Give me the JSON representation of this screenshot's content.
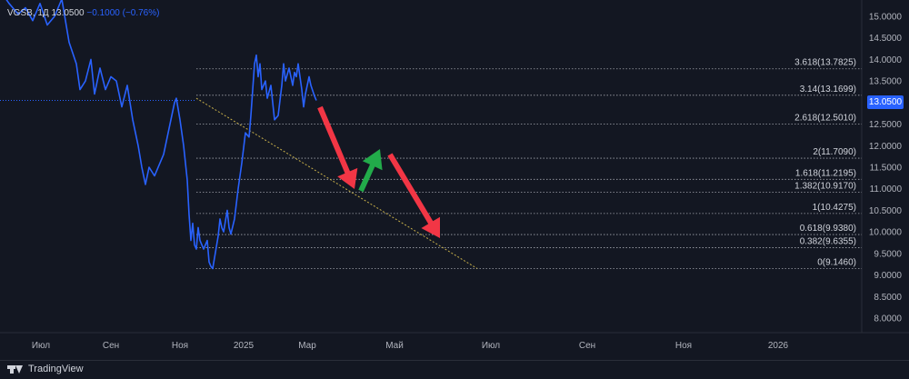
{
  "legend": {
    "symbol": "VGSB, 1Д",
    "values": "13.0500",
    "change": "−0.1000 (−0.76%)"
  },
  "current_price": "13.0500",
  "footer": {
    "brand": "TradingView"
  },
  "colors": {
    "background": "#131722",
    "price_line": "#2962ff",
    "fib_line": "#d1d4dc",
    "trend_line": "#c8b04a",
    "arrow_down": "#f23645",
    "arrow_up": "#22ab4a",
    "axis_text": "#b2b5be"
  },
  "chart_data": {
    "type": "line",
    "y_axis": {
      "ylim": [
        7.75,
        15.25
      ],
      "ticks": [
        "15.0000",
        "14.5000",
        "14.0000",
        "13.5000",
        "13.0000",
        "12.5000",
        "12.0000",
        "11.5000",
        "11.0000",
        "10.5000",
        "10.0000",
        "9.5000",
        "9.0000",
        "8.5000",
        "8.0000"
      ]
    },
    "x_axis": {
      "ticks": [
        "Июл",
        "Сен",
        "Ноя",
        "2025",
        "Мар",
        "Май",
        "Июл",
        "Сен",
        "Ноя",
        "2026"
      ]
    },
    "series": [
      {
        "values": [
          [
            0,
            15.6
          ],
          [
            5,
            15.3
          ],
          [
            10,
            15.05
          ],
          [
            14,
            15.2
          ],
          [
            18,
            14.9
          ],
          [
            22,
            15.3
          ],
          [
            26,
            14.8
          ],
          [
            30,
            15.0
          ],
          [
            34,
            15.4
          ],
          [
            38,
            14.4
          ],
          [
            42,
            13.9
          ],
          [
            44,
            13.3
          ],
          [
            47,
            13.5
          ],
          [
            50,
            14.0
          ],
          [
            52,
            13.2
          ],
          [
            55,
            13.8
          ],
          [
            58,
            13.3
          ],
          [
            61,
            13.6
          ],
          [
            64,
            13.5
          ],
          [
            67,
            12.9
          ],
          [
            70,
            13.4
          ],
          [
            73,
            12.6
          ],
          [
            76,
            12.0
          ],
          [
            78,
            11.5
          ],
          [
            80,
            11.1
          ],
          [
            82,
            11.5
          ],
          [
            85,
            11.3
          ],
          [
            88,
            11.6
          ],
          [
            90,
            11.8
          ],
          [
            92,
            12.2
          ],
          [
            94,
            12.6
          ],
          [
            96,
            13.0
          ],
          [
            97,
            13.1
          ],
          [
            99,
            12.6
          ],
          [
            101,
            12.0
          ],
          [
            103,
            11.2
          ],
          [
            104,
            10.4
          ],
          [
            105,
            9.8
          ],
          [
            106,
            10.2
          ],
          [
            107,
            9.7
          ],
          [
            108,
            9.6
          ],
          [
            109,
            10.1
          ],
          [
            110,
            9.8
          ],
          [
            112,
            9.6
          ],
          [
            114,
            9.8
          ],
          [
            115,
            9.3
          ],
          [
            116,
            9.2
          ],
          [
            117,
            9.15
          ],
          [
            118,
            9.4
          ],
          [
            120,
            9.9
          ],
          [
            121,
            10.3
          ],
          [
            122,
            10.1
          ],
          [
            123,
            10.0
          ],
          [
            125,
            10.5
          ],
          [
            126,
            10.1
          ],
          [
            127,
            9.95
          ],
          [
            129,
            10.3
          ],
          [
            131,
            11.0
          ],
          [
            133,
            11.6
          ],
          [
            135,
            12.3
          ],
          [
            137,
            12.2
          ],
          [
            138,
            12.7
          ],
          [
            139,
            13.3
          ],
          [
            140,
            13.9
          ],
          [
            141,
            14.1
          ],
          [
            142,
            13.6
          ],
          [
            143,
            13.9
          ],
          [
            144,
            13.3
          ],
          [
            146,
            13.5
          ],
          [
            147,
            13.1
          ],
          [
            149,
            13.4
          ],
          [
            151,
            12.6
          ],
          [
            153,
            12.7
          ],
          [
            155,
            13.4
          ],
          [
            156,
            13.9
          ],
          [
            157,
            13.5
          ],
          [
            159,
            13.8
          ],
          [
            161,
            13.4
          ],
          [
            162,
            13.7
          ],
          [
            163,
            13.6
          ],
          [
            164,
            13.9
          ],
          [
            166,
            13.3
          ],
          [
            167,
            12.9
          ],
          [
            168,
            13.2
          ],
          [
            170,
            13.6
          ],
          [
            171,
            13.4
          ],
          [
            173,
            13.15
          ],
          [
            174,
            13.05
          ]
        ]
      }
    ],
    "fib_levels": [
      {
        "ratio": "3.618",
        "value": 13.7825,
        "label": "3.618(13.7825)"
      },
      {
        "ratio": "3.14",
        "value": 13.1699,
        "label": "3.14(13.1699)"
      },
      {
        "ratio": "2.618",
        "value": 12.501,
        "label": "2.618(12.5010)"
      },
      {
        "ratio": "2",
        "value": 11.709,
        "label": "2(11.7090)"
      },
      {
        "ratio": "1.618",
        "value": 11.2195,
        "label": "1.618(11.2195)"
      },
      {
        "ratio": "1.382",
        "value": 10.917,
        "label": "1.382(10.9170)"
      },
      {
        "ratio": "1",
        "value": 10.4275,
        "label": "1(10.4275)"
      },
      {
        "ratio": "0.618",
        "value": 9.938,
        "label": "0.618(9.9380)"
      },
      {
        "ratio": "0.382",
        "value": 9.6355,
        "label": "0.382(9.6355)"
      },
      {
        "ratio": "0",
        "value": 9.146,
        "label": "0(9.1460)"
      }
    ]
  }
}
